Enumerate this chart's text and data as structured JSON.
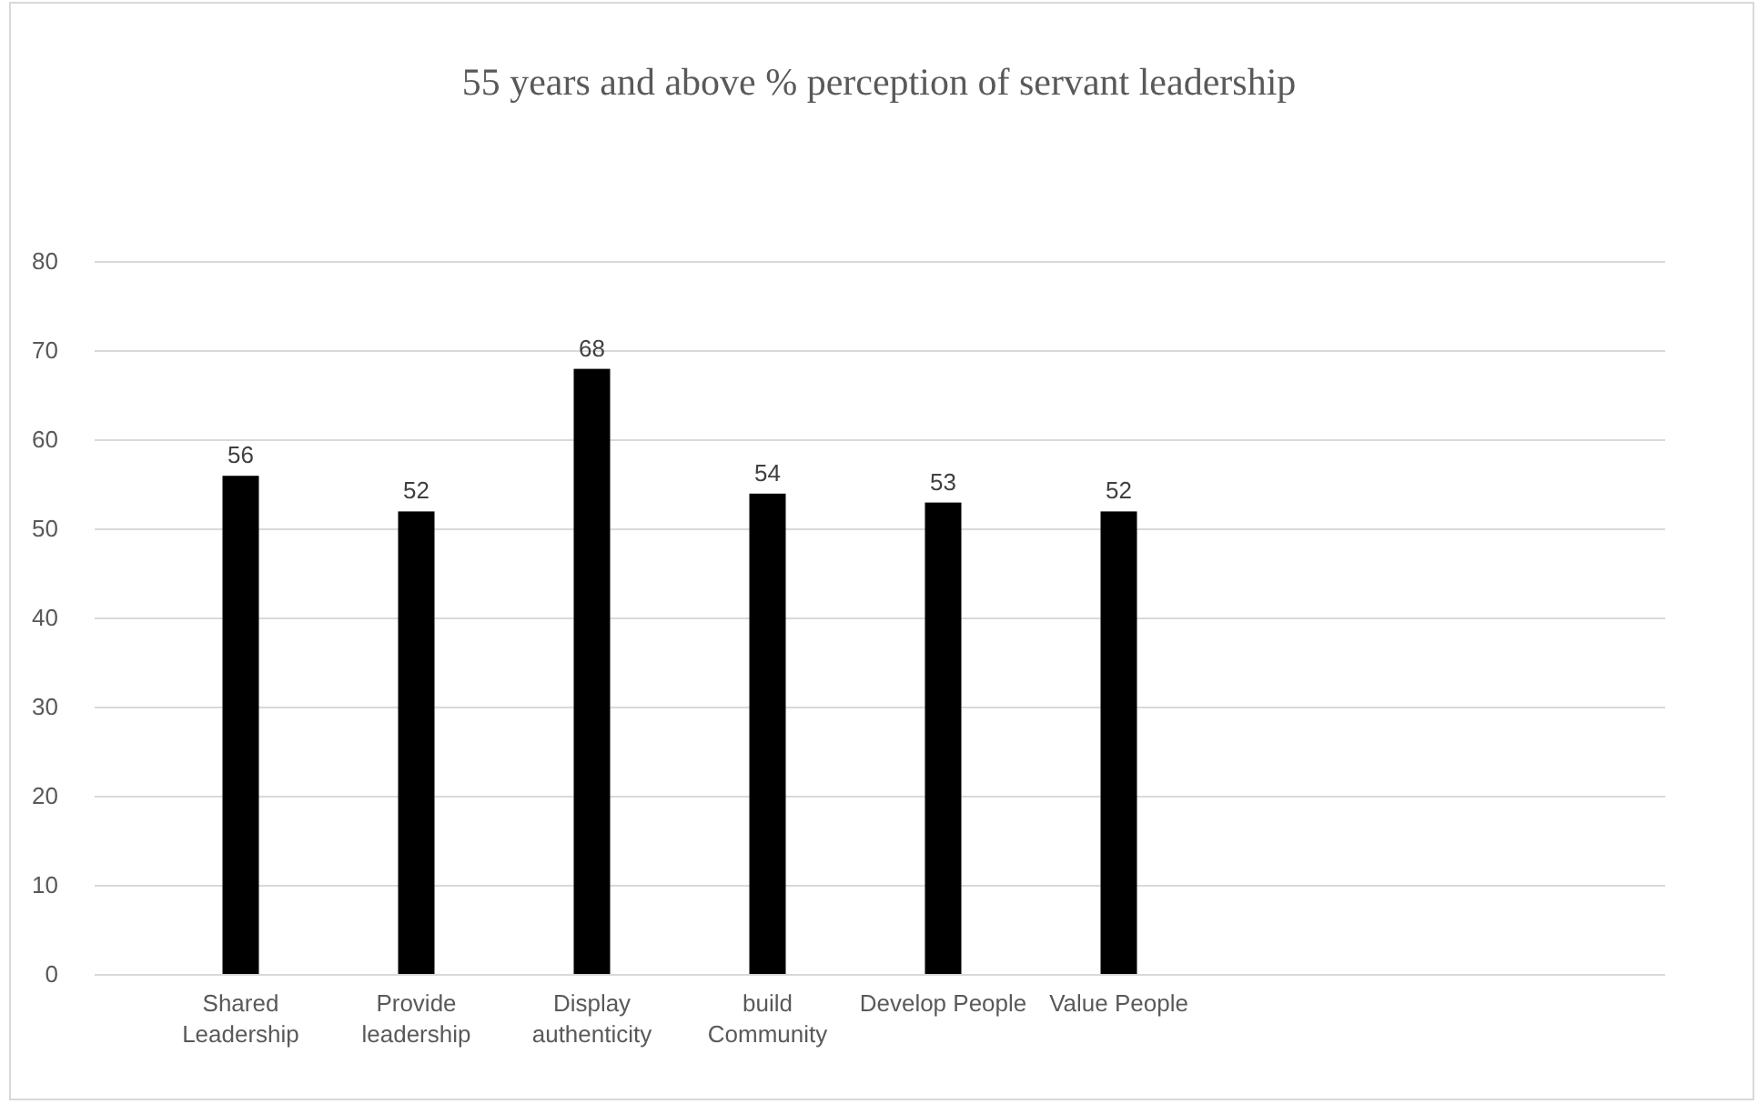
{
  "chart_data": {
    "type": "bar",
    "title": "55 years and above % perception of servant leadership",
    "categories": [
      "Shared Leadership",
      "Provide leadership",
      "Display authenticity",
      "build Community",
      "Develop People",
      "Value People"
    ],
    "values": [
      56,
      52,
      68,
      54,
      53,
      52
    ],
    "color": "#000000",
    "ylim": [
      0,
      80
    ],
    "yticks": [
      0,
      10,
      20,
      30,
      40,
      50,
      60,
      70,
      80
    ],
    "grid": "y",
    "data_labels": true
  }
}
